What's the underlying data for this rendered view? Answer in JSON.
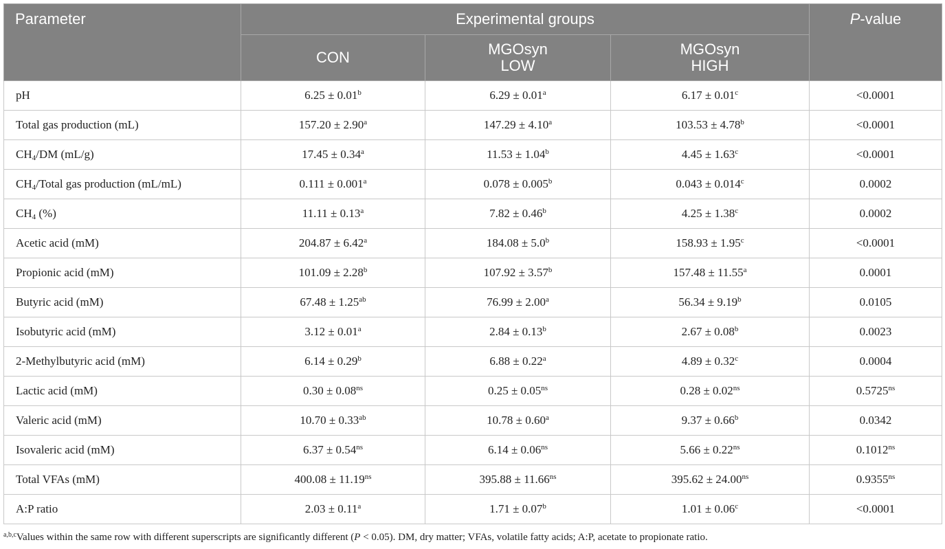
{
  "table": {
    "header": {
      "parameter": "Parameter",
      "groups_title": "Experimental groups",
      "groups": [
        [
          "CON"
        ],
        [
          "MGOsyn",
          "LOW"
        ],
        [
          "MGOsyn",
          "HIGH"
        ]
      ],
      "p_value": [
        {
          "i": "P"
        },
        {
          "text": "-value"
        }
      ]
    },
    "rows": [
      [
        [
          {
            "text": "pH"
          }
        ],
        [
          {
            "text": "6.25 ± 0.01"
          },
          {
            "sup": "b"
          }
        ],
        [
          {
            "text": "6.29 ± 0.01"
          },
          {
            "sup": "a"
          }
        ],
        [
          {
            "text": "6.17 ± 0.01"
          },
          {
            "sup": "c"
          }
        ],
        [
          {
            "text": "<0.0001"
          }
        ]
      ],
      [
        [
          {
            "text": "Total gas production (mL)"
          }
        ],
        [
          {
            "text": "157.20 ± 2.90"
          },
          {
            "sup": "a"
          }
        ],
        [
          {
            "text": "147.29 ± 4.10"
          },
          {
            "sup": "a"
          }
        ],
        [
          {
            "text": "103.53 ± 4.78"
          },
          {
            "sup": "b"
          }
        ],
        [
          {
            "text": "<0.0001"
          }
        ]
      ],
      [
        [
          {
            "text": "CH"
          },
          {
            "sub": "4"
          },
          {
            "text": "/DM (mL/g)"
          }
        ],
        [
          {
            "text": "17.45 ± 0.34"
          },
          {
            "sup": "a"
          }
        ],
        [
          {
            "text": "11.53 ± 1.04"
          },
          {
            "sup": "b"
          }
        ],
        [
          {
            "text": "4.45 ± 1.63"
          },
          {
            "sup": "c"
          }
        ],
        [
          {
            "text": "<0.0001"
          }
        ]
      ],
      [
        [
          {
            "text": "CH"
          },
          {
            "sub": "4"
          },
          {
            "text": "/Total gas production (mL/mL)"
          }
        ],
        [
          {
            "text": "0.111 ± 0.001"
          },
          {
            "sup": "a"
          }
        ],
        [
          {
            "text": "0.078 ± 0.005"
          },
          {
            "sup": "b"
          }
        ],
        [
          {
            "text": "0.043 ± 0.014"
          },
          {
            "sup": "c"
          }
        ],
        [
          {
            "text": "0.0002"
          }
        ]
      ],
      [
        [
          {
            "text": "CH"
          },
          {
            "sub": "4"
          },
          {
            "text": " (%)"
          }
        ],
        [
          {
            "text": "11.11 ± 0.13"
          },
          {
            "sup": "a"
          }
        ],
        [
          {
            "text": "7.82 ± 0.46"
          },
          {
            "sup": "b"
          }
        ],
        [
          {
            "text": "4.25 ± 1.38"
          },
          {
            "sup": "c"
          }
        ],
        [
          {
            "text": "0.0002"
          }
        ]
      ],
      [
        [
          {
            "text": "Acetic acid (mM)"
          }
        ],
        [
          {
            "text": "204.87 ± 6.42"
          },
          {
            "sup": "a"
          }
        ],
        [
          {
            "text": "184.08 ± 5.0"
          },
          {
            "sup": "b"
          }
        ],
        [
          {
            "text": "158.93 ± 1.95"
          },
          {
            "sup": "c"
          }
        ],
        [
          {
            "text": "<0.0001"
          }
        ]
      ],
      [
        [
          {
            "text": "Propionic acid (mM)"
          }
        ],
        [
          {
            "text": "101.09 ± 2.28"
          },
          {
            "sup": "b"
          }
        ],
        [
          {
            "text": "107.92 ± 3.57"
          },
          {
            "sup": "b"
          }
        ],
        [
          {
            "text": "157.48 ± 11.55"
          },
          {
            "sup": "a"
          }
        ],
        [
          {
            "text": "0.0001"
          }
        ]
      ],
      [
        [
          {
            "text": "Butyric acid (mM)"
          }
        ],
        [
          {
            "text": "67.48 ± 1.25"
          },
          {
            "sup": "ab"
          }
        ],
        [
          {
            "text": "76.99 ± 2.00"
          },
          {
            "sup": "a"
          }
        ],
        [
          {
            "text": "56.34 ± 9.19"
          },
          {
            "sup": "b"
          }
        ],
        [
          {
            "text": "0.0105"
          }
        ]
      ],
      [
        [
          {
            "text": "Isobutyric acid (mM)"
          }
        ],
        [
          {
            "text": "3.12 ± 0.01"
          },
          {
            "sup": "a"
          }
        ],
        [
          {
            "text": "2.84 ± 0.13"
          },
          {
            "sup": "b"
          }
        ],
        [
          {
            "text": "2.67 ± 0.08"
          },
          {
            "sup": "b"
          }
        ],
        [
          {
            "text": "0.0023"
          }
        ]
      ],
      [
        [
          {
            "text": "2-Methylbutyric acid (mM)"
          }
        ],
        [
          {
            "text": "6.14 ± 0.29"
          },
          {
            "sup": "b"
          }
        ],
        [
          {
            "text": "6.88 ± 0.22"
          },
          {
            "sup": "a"
          }
        ],
        [
          {
            "text": "4.89 ± 0.32"
          },
          {
            "sup": "c"
          }
        ],
        [
          {
            "text": "0.0004"
          }
        ]
      ],
      [
        [
          {
            "text": "Lactic acid (mM)"
          }
        ],
        [
          {
            "text": "0.30 ± 0.08"
          },
          {
            "sup": "ns"
          }
        ],
        [
          {
            "text": "0.25 ± 0.05"
          },
          {
            "sup": "ns"
          }
        ],
        [
          {
            "text": "0.28 ± 0.02"
          },
          {
            "sup": "ns"
          }
        ],
        [
          {
            "text": "0.5725"
          },
          {
            "sup": "ns"
          }
        ]
      ],
      [
        [
          {
            "text": "Valeric acid (mM)"
          }
        ],
        [
          {
            "text": "10.70 ± 0.33"
          },
          {
            "sup": "ab"
          }
        ],
        [
          {
            "text": "10.78 ± 0.60"
          },
          {
            "sup": "a"
          }
        ],
        [
          {
            "text": "9.37 ± 0.66"
          },
          {
            "sup": "b"
          }
        ],
        [
          {
            "text": "0.0342"
          }
        ]
      ],
      [
        [
          {
            "text": "Isovaleric acid (mM)"
          }
        ],
        [
          {
            "text": "6.37 ± 0.54"
          },
          {
            "sup": "ns"
          }
        ],
        [
          {
            "text": "6.14 ± 0.06"
          },
          {
            "sup": "ns"
          }
        ],
        [
          {
            "text": "5.66 ± 0.22"
          },
          {
            "sup": "ns"
          }
        ],
        [
          {
            "text": "0.1012"
          },
          {
            "sup": "ns"
          }
        ]
      ],
      [
        [
          {
            "text": "Total VFAs (mM)"
          }
        ],
        [
          {
            "text": "400.08 ± 11.19"
          },
          {
            "sup": "ns"
          }
        ],
        [
          {
            "text": "395.88 ± 11.66"
          },
          {
            "sup": "ns"
          }
        ],
        [
          {
            "text": "395.62 ± 24.00"
          },
          {
            "sup": "ns"
          }
        ],
        [
          {
            "text": "0.9355"
          },
          {
            "sup": "ns"
          }
        ]
      ],
      [
        [
          {
            "text": "A:P ratio"
          }
        ],
        [
          {
            "text": "2.03 ± 0.11"
          },
          {
            "sup": "a"
          }
        ],
        [
          {
            "text": "1.71 ± 0.07"
          },
          {
            "sup": "b"
          }
        ],
        [
          {
            "text": "1.01 ± 0.06"
          },
          {
            "sup": "c"
          }
        ],
        [
          {
            "text": "<0.0001"
          }
        ]
      ]
    ]
  },
  "footnote": [
    {
      "sup": "a,b,c"
    },
    {
      "text": "Values within the same row with different superscripts are significantly different ("
    },
    {
      "i": "P"
    },
    {
      "text": " < 0.05). DM, dry matter; VFAs, volatile fatty acids; A:P, acetate to propionate ratio."
    }
  ]
}
